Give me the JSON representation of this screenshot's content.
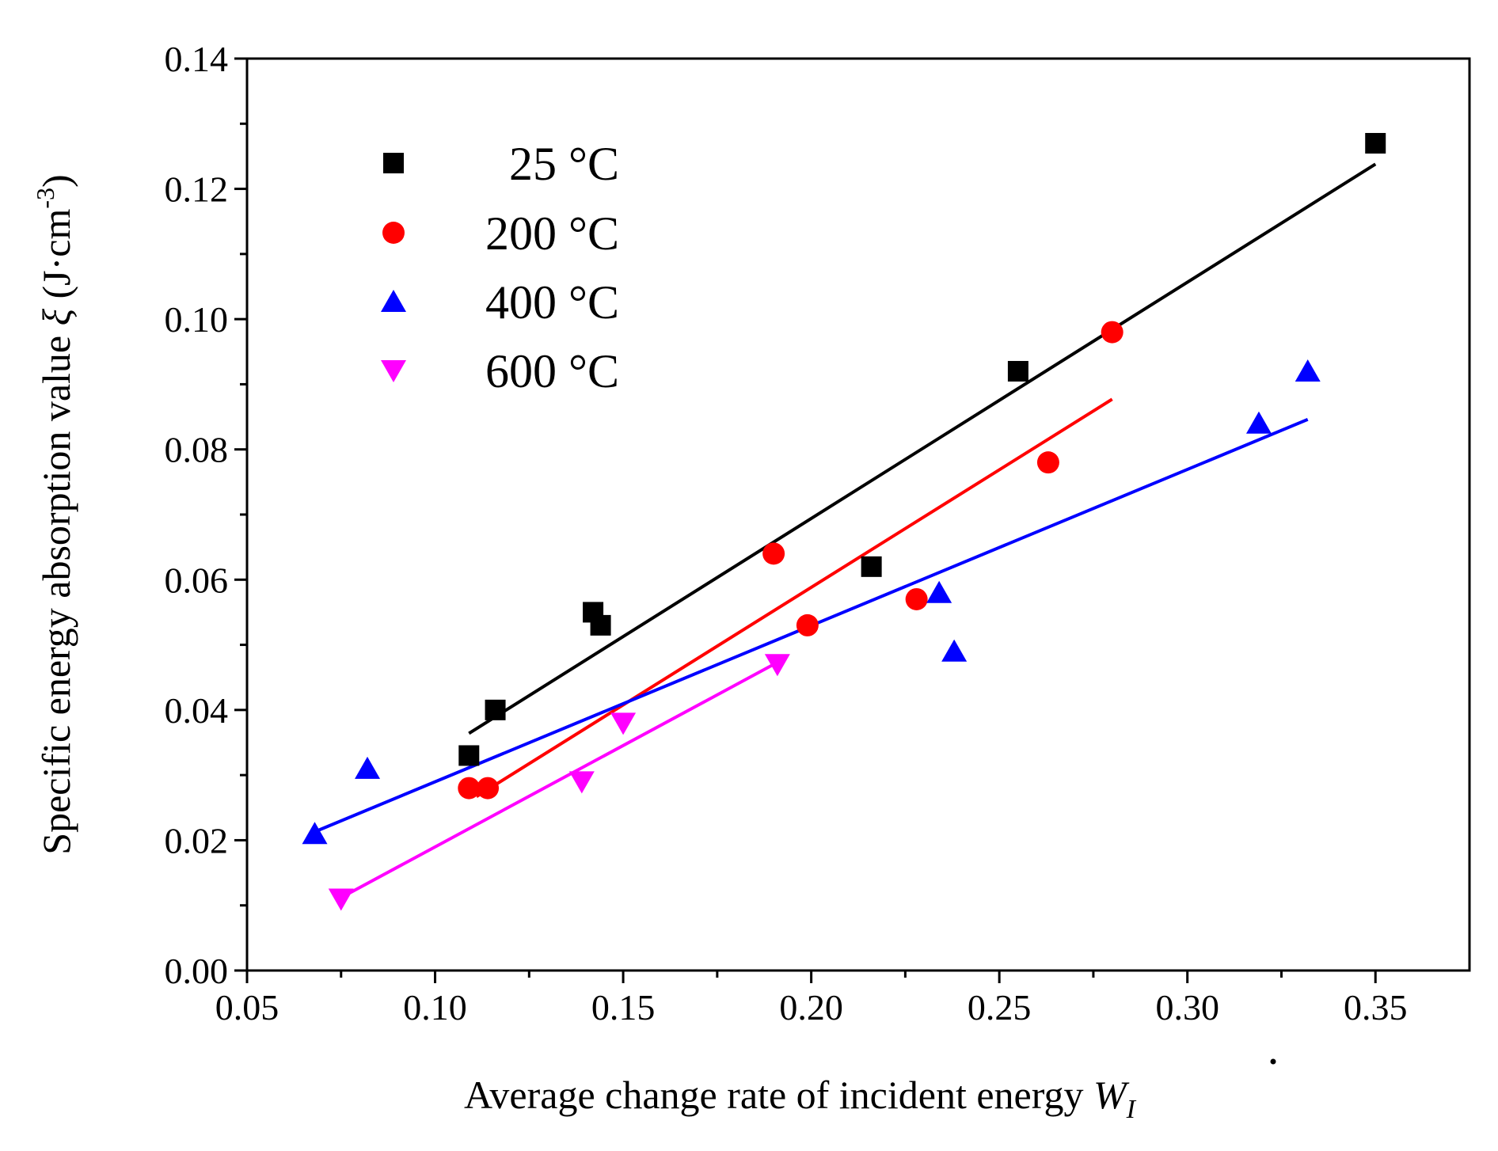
{
  "chart_data": {
    "type": "scatter",
    "title": "",
    "xlabel": "Average change rate of incident energy",
    "xlabel_symbol": "W",
    "xlabel_subscript": "I",
    "ylabel": "Specific energy absorption value",
    "ylabel_symbol": "ξ",
    "ylabel_unit": "(J·cm",
    "ylabel_unit_exp": "-3",
    "ylabel_unit_close": ")",
    "xlim": [
      0.05,
      0.375
    ],
    "ylim": [
      0.0,
      0.14
    ],
    "xticks": [
      0.05,
      0.1,
      0.15,
      0.2,
      0.25,
      0.3,
      0.35
    ],
    "xtick_labels": [
      "0.05",
      "0.10",
      "0.15",
      "0.20",
      "0.25",
      "0.30",
      "0.35"
    ],
    "yticks": [
      0.0,
      0.02,
      0.04,
      0.06,
      0.08,
      0.1,
      0.12,
      0.14
    ],
    "ytick_labels": [
      "0.00",
      "0.02",
      "0.04",
      "0.06",
      "0.08",
      "0.10",
      "0.12",
      "0.14"
    ],
    "grid": false,
    "legend_position": "top-left",
    "series": [
      {
        "name": "25 °C",
        "marker": "square",
        "color": "#000000",
        "x": [
          0.109,
          0.116,
          0.142,
          0.144,
          0.216,
          0.255,
          0.35
        ],
        "y": [
          0.033,
          0.04,
          0.055,
          0.053,
          0.062,
          0.092,
          0.127
        ],
        "fit": {
          "x": [
            0.109,
            0.35
          ],
          "y": [
            0.0364,
            0.1238
          ]
        }
      },
      {
        "name": "200 °C",
        "marker": "circle",
        "color": "#ff0000",
        "x": [
          0.109,
          0.114,
          0.19,
          0.199,
          0.228,
          0.263,
          0.28
        ],
        "y": [
          0.028,
          0.028,
          0.064,
          0.053,
          0.057,
          0.078,
          0.098
        ],
        "fit": {
          "x": [
            0.111,
            0.28
          ],
          "y": [
            0.0267,
            0.0877
          ]
        }
      },
      {
        "name": "400 °C",
        "marker": "triangle-up",
        "color": "#0000ff",
        "x": [
          0.068,
          0.082,
          0.234,
          0.238,
          0.319,
          0.332
        ],
        "y": [
          0.021,
          0.031,
          0.058,
          0.049,
          0.084,
          0.092
        ],
        "fit": {
          "x": [
            0.068,
            0.332
          ],
          "y": [
            0.0213,
            0.0846
          ]
        }
      },
      {
        "name": "600 °C",
        "marker": "triangle-down",
        "color": "#ff00ff",
        "x": [
          0.075,
          0.139,
          0.15,
          0.191
        ],
        "y": [
          0.011,
          0.029,
          0.038,
          0.047
        ],
        "fit": {
          "x": [
            0.075,
            0.191
          ],
          "y": [
            0.0112,
            0.0473
          ]
        }
      }
    ]
  }
}
